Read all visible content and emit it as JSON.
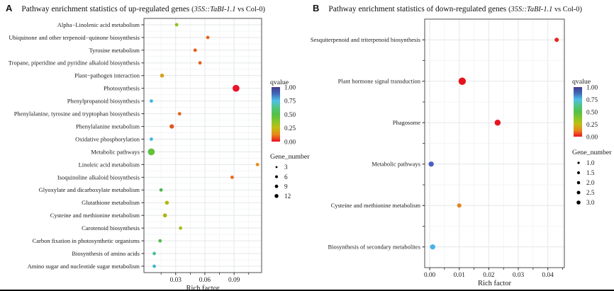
{
  "chart_data": [
    {
      "panel": "A",
      "type": "scatter",
      "panel_label": "A",
      "title_text": "Pathway enrichment statistics of up-regulated genes ",
      "title_paren": "(",
      "title_gene": "35S::TaBI-1.1",
      "title_suffix": " vs Col-0)",
      "xlabel": "Rich factor",
      "ylabel": "",
      "grid": true,
      "xlim": [
        -0.0026,
        0.1183
      ],
      "x_tick_labels": [
        "0.03",
        "0.06",
        "0.09"
      ],
      "x_tick_values": [
        0.03,
        0.06,
        0.09
      ],
      "x_minor_values": [
        0.015,
        0.045,
        0.075,
        0.105
      ],
      "legend_position": "right",
      "legend": {
        "color_title": "qvalue",
        "color_tick_labels": [
          "1.00",
          "0.75",
          "0.50",
          "0.25",
          "0.00"
        ],
        "gradient_colors": [
          "#453a8c",
          "#3f6ab8",
          "#4fc0e8",
          "#52c482",
          "#53c048",
          "#85c629",
          "#c3bd12",
          "#e8861c",
          "#e91123"
        ],
        "size_title": "Gene_number",
        "size_items": [
          {
            "label": "3",
            "value": 3
          },
          {
            "label": "6",
            "value": 6
          },
          {
            "label": "9",
            "value": 9
          },
          {
            "label": "12",
            "value": 12
          }
        ]
      },
      "points": [
        {
          "pathway": "Alpha−Linolenic acid metabolism",
          "rich_factor": 0.031,
          "gene_number": 3,
          "qvalue": 0.25,
          "color": "#8fc31d"
        },
        {
          "pathway": "Ubiquinone and other terpenoid−quinone biosynthesis",
          "rich_factor": 0.063,
          "gene_number": 3,
          "qvalue": 0.08,
          "color": "#e7661b"
        },
        {
          "pathway": "Tyrosine metabolism",
          "rich_factor": 0.05,
          "gene_number": 3,
          "qvalue": 0.08,
          "color": "#e4601e"
        },
        {
          "pathway": "Tropane, piperidine and pyridine alkaloid biosynthesis",
          "rich_factor": 0.055,
          "gene_number": 3,
          "qvalue": 0.08,
          "color": "#e4611c"
        },
        {
          "pathway": "Plant−pathogen interaction",
          "rich_factor": 0.016,
          "gene_number": 4,
          "qvalue": 0.15,
          "color": "#d3a01e"
        },
        {
          "pathway": "Photosynthesis",
          "rich_factor": 0.092,
          "gene_number": 12,
          "qvalue": 0.01,
          "color": "#e8152b"
        },
        {
          "pathway": "Phenylpropanoid biosynthesis",
          "rich_factor": 0.005,
          "gene_number": 3,
          "qvalue": 0.7,
          "color": "#41b7de"
        },
        {
          "pathway": "Phenylalanine, tyrosine and tryptophan biosynthesis",
          "rich_factor": 0.034,
          "gene_number": 3,
          "qvalue": 0.08,
          "color": "#e5661c"
        },
        {
          "pathway": "Phenylalanine metabolism",
          "rich_factor": 0.026,
          "gene_number": 5,
          "qvalue": 0.05,
          "color": "#e2571f"
        },
        {
          "pathway": "Oxidative phosphorylation",
          "rich_factor": 0.005,
          "gene_number": 3,
          "qvalue": 0.7,
          "color": "#41b7de"
        },
        {
          "pathway": "Metabolic pathways",
          "rich_factor": 0.005,
          "gene_number": 12,
          "qvalue": 0.35,
          "color": "#63c13c"
        },
        {
          "pathway": "Linoleic acid metabolism",
          "rich_factor": 0.114,
          "gene_number": 3,
          "qvalue": 0.12,
          "color": "#e8921a"
        },
        {
          "pathway": "Isoquinoline alkaloid biosynthesis",
          "rich_factor": 0.088,
          "gene_number": 3,
          "qvalue": 0.08,
          "color": "#e76d18"
        },
        {
          "pathway": "Glyoxylate and dicarboxylate metabolism",
          "rich_factor": 0.015,
          "gene_number": 3,
          "qvalue": 0.45,
          "color": "#4eba52"
        },
        {
          "pathway": "Glutathione metabolism",
          "rich_factor": 0.021,
          "gene_number": 4,
          "qvalue": 0.22,
          "color": "#b7b70f"
        },
        {
          "pathway": "Cysteine and methionine metabolism",
          "rich_factor": 0.019,
          "gene_number": 4,
          "qvalue": 0.22,
          "color": "#b2b211"
        },
        {
          "pathway": "Carotenoid biosynthesis",
          "rich_factor": 0.035,
          "gene_number": 3,
          "qvalue": 0.26,
          "color": "#a2c014"
        },
        {
          "pathway": "Carbon fixation in photosynthetic organisms",
          "rich_factor": 0.014,
          "gene_number": 3,
          "qvalue": 0.42,
          "color": "#55bb49"
        },
        {
          "pathway": "Biosynthesis of amino acids",
          "rich_factor": 0.008,
          "gene_number": 3,
          "qvalue": 0.55,
          "color": "#4bbf93"
        },
        {
          "pathway": "Amino sugar and nucleotide sugar metabolism",
          "rich_factor": 0.008,
          "gene_number": 3,
          "qvalue": 0.62,
          "color": "#3fb9c6"
        }
      ]
    },
    {
      "panel": "B",
      "type": "scatter",
      "panel_label": "B",
      "title_text": "Pathway enrichment statistics of down-regulated genes ",
      "title_paren": "(",
      "title_gene": "35S::TaBI-1.1",
      "title_suffix": " vs Col-0)",
      "xlabel": "Rich factor",
      "ylabel": "",
      "grid": true,
      "xlim": [
        -0.0017,
        0.0456
      ],
      "x_tick_labels": [
        "0.00",
        "0.01",
        "0.02",
        "0.03",
        "0.04"
      ],
      "x_tick_values": [
        0,
        0.01,
        0.02,
        0.03,
        0.04
      ],
      "x_minor_values": [
        0.005,
        0.015,
        0.025,
        0.035,
        0.045
      ],
      "legend_position": "right",
      "legend": {
        "color_title": "qvalue",
        "color_tick_labels": [
          "1.00",
          "0.75",
          "0.50",
          "0.25",
          "0.00"
        ],
        "gradient_colors": [
          "#453a8c",
          "#3f6ab8",
          "#4fc0e8",
          "#52c482",
          "#53c048",
          "#85c629",
          "#c3bd12",
          "#e8861c",
          "#e91123"
        ],
        "size_title": "Gene_number",
        "size_items": [
          {
            "label": "1.0",
            "value": 1
          },
          {
            "label": "1.5",
            "value": 1.5
          },
          {
            "label": "2.0",
            "value": 2
          },
          {
            "label": "2.5",
            "value": 2.5
          },
          {
            "label": "3.0",
            "value": 3
          }
        ]
      },
      "points": [
        {
          "pathway": "Sesquiterpenoid and triterpenoid biosynthesis",
          "rich_factor": 0.043,
          "gene_number": 1,
          "qvalue": 0.01,
          "color": "#e8241b"
        },
        {
          "pathway": "Plant hormone signal transduction",
          "rich_factor": 0.011,
          "gene_number": 3,
          "qvalue": 0.005,
          "color": "#e6131e"
        },
        {
          "pathway": "Phagosome",
          "rich_factor": 0.023,
          "gene_number": 2,
          "qvalue": 0.01,
          "color": "#e61722"
        },
        {
          "pathway": "Metabolic pathways",
          "rich_factor": 0.0005,
          "gene_number": 1.5,
          "qvalue": 0.85,
          "color": "#4a5fc3"
        },
        {
          "pathway": "Cysteine and methionine metabolism",
          "rich_factor": 0.01,
          "gene_number": 1,
          "qvalue": 0.1,
          "color": "#e68318"
        },
        {
          "pathway": "Biosynthesis of secondary metabolites",
          "rich_factor": 0.001,
          "gene_number": 1.5,
          "qvalue": 0.72,
          "color": "#45b1e8"
        }
      ]
    }
  ]
}
